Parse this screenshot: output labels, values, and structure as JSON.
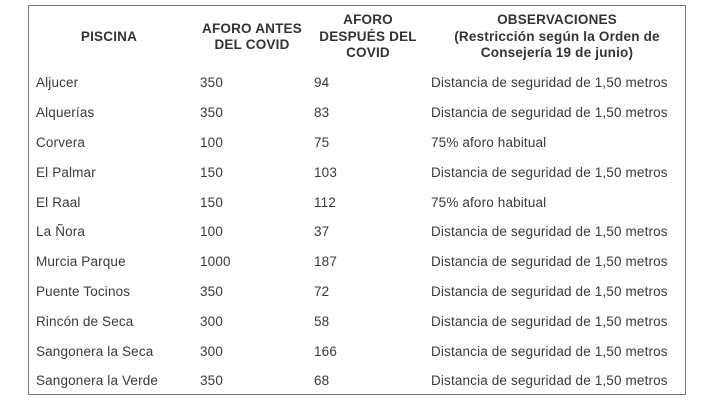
{
  "table": {
    "headers": [
      "PISCINA",
      "AFORO ANTES DEL COVID",
      "AFORO DESPUÉS DEL COVID",
      "OBSERVACIONES (Restricción según la Orden de Consejería 19 de junio)"
    ],
    "header_lines": [
      [
        "PISCINA"
      ],
      [
        "AFORO ANTES",
        "DEL COVID"
      ],
      [
        "AFORO",
        "DESPUÉS DEL",
        "COVID"
      ],
      [
        "OBSERVACIONES",
        "(Restricción según la Orden de",
        "Consejería 19 de junio)"
      ]
    ],
    "rows": [
      [
        "Aljucer",
        "350",
        "94",
        "Distancia de seguridad de 1,50 metros"
      ],
      [
        "Alquerías",
        "350",
        "83",
        "Distancia de seguridad de 1,50 metros"
      ],
      [
        "Corvera",
        "100",
        "75",
        "75% aforo habitual"
      ],
      [
        "El Palmar",
        "150",
        "103",
        "Distancia de seguridad de 1,50 metros"
      ],
      [
        "El Raal",
        "150",
        "112",
        "75% aforo habitual"
      ],
      [
        "La Ñora",
        "100",
        "37",
        "Distancia de seguridad de 1,50 metros"
      ],
      [
        "Murcia Parque",
        "1000",
        "187",
        "Distancia de seguridad de 1,50 metros"
      ],
      [
        "Puente Tocinos",
        "350",
        "72",
        "Distancia de seguridad de 1,50 metros"
      ],
      [
        "Rincón de Seca",
        "300",
        "58",
        "Distancia de seguridad de 1,50 metros"
      ],
      [
        "Sangonera la Seca",
        "300",
        "166",
        "Distancia de seguridad de 1,50 metros"
      ],
      [
        "Sangonera la Verde",
        "350",
        "68",
        "Distancia de seguridad de 1,50 metros"
      ]
    ]
  },
  "colors": {
    "border": "#7a7a7a",
    "text": "#333333",
    "background": "#ffffff"
  }
}
